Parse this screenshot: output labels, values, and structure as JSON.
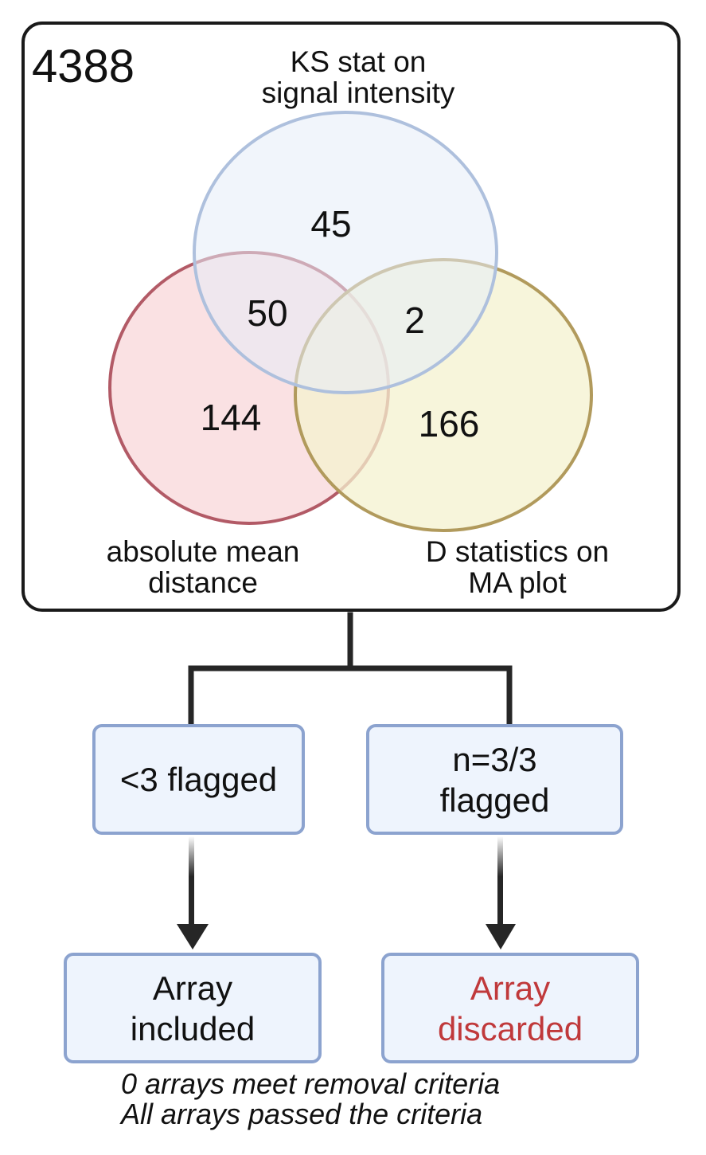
{
  "venn": {
    "total": "4388",
    "sets": {
      "ks": {
        "label_line1": "KS stat on",
        "label_line2": "signal intensity",
        "fill": "#e6ecf8",
        "stroke": "#aec0dd"
      },
      "amd": {
        "label_line1": "absolute mean",
        "label_line2": "distance",
        "fill": "#f8d7da",
        "stroke": "#b25a66"
      },
      "d": {
        "label_line1": "D statistics on",
        "label_line2": "MA plot",
        "fill": "#f4f1cf",
        "stroke": "#b19a5c"
      }
    },
    "regions": {
      "ks_only": "45",
      "ks_amd": "50",
      "ks_d": "2",
      "amd_only": "144",
      "d_only": "166"
    }
  },
  "flow": {
    "left_decision": "<3 flagged",
    "right_decision_line1": "n=3/3",
    "right_decision_line2": "flagged",
    "left_outcome_line1": "Array",
    "left_outcome_line2": "included",
    "right_outcome_line1": "Array",
    "right_outcome_line2": "discarded",
    "discard_color": "#c0393b",
    "box_fill": "#eef4fd",
    "box_border": "#8ca3cf"
  },
  "notes": {
    "line1": "0 arrays meet removal criteria",
    "line2": "All arrays passed the criteria"
  }
}
